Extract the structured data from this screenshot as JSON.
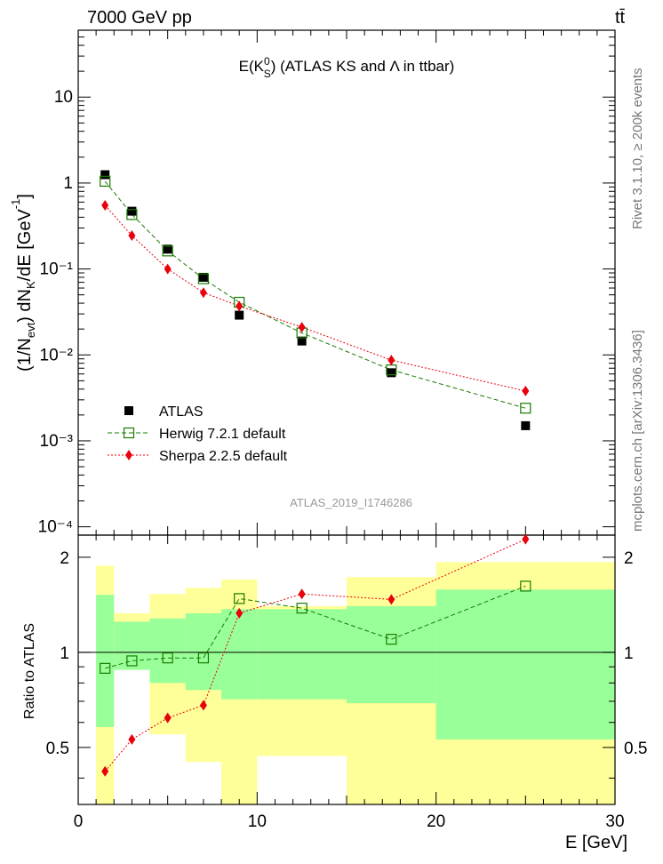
{
  "header": {
    "left": "7000 GeV pp",
    "right": "tt̄"
  },
  "side_text": {
    "upper": "Rivet 3.1.10, ≥ 200k events",
    "lower": "mcplots.cern.ch [arXiv:1306.3436]"
  },
  "chart_data": [
    {
      "type": "scatter",
      "title": "E(K_S^0) (ATLAS KS and Λ in ttbar)",
      "watermark": "ATLAS_2019_I1746286",
      "xlabel": "E [GeV]",
      "ylabel": "(1/N_evt) dN_K/dE [GeV^-1]",
      "xlim": [
        0,
        30
      ],
      "ylim": [
        8e-05,
        60
      ],
      "yscale": "log",
      "yticks": [
        "10⁻⁴",
        "10⁻³",
        "10⁻²",
        "10⁻¹",
        "1",
        "10"
      ],
      "legend_position": "bottom-left",
      "x": [
        1.5,
        3.0,
        5.0,
        7.0,
        9.0,
        12.5,
        17.5,
        25.0
      ],
      "bins": [
        [
          1,
          2
        ],
        [
          2,
          4
        ],
        [
          4,
          6
        ],
        [
          6,
          8
        ],
        [
          8,
          10
        ],
        [
          10,
          15
        ],
        [
          15,
          20
        ],
        [
          20,
          30
        ]
      ],
      "series": [
        {
          "name": "ATLAS",
          "color": "#000000",
          "marker": "square-filled",
          "values": [
            1.25,
            0.47,
            0.17,
            0.08,
            0.029,
            0.0145,
            0.0062,
            0.0015
          ]
        },
        {
          "name": "Herwig 7.2.1 default",
          "color": "#1a7a00",
          "marker": "square-open",
          "line": "dashed",
          "values": [
            1.05,
            0.43,
            0.162,
            0.077,
            0.041,
            0.018,
            0.0067,
            0.0024
          ]
        },
        {
          "name": "Sherpa 2.2.5 default",
          "color": "#e8000b",
          "marker": "diamond",
          "line": "dotted",
          "values": [
            0.55,
            0.245,
            0.1,
            0.053,
            0.037,
            0.021,
            0.0087,
            0.0038
          ]
        }
      ]
    },
    {
      "type": "scatter",
      "ylabel": "Ratio to ATLAS",
      "xlabel": "E [GeV]",
      "xlim": [
        0,
        30
      ],
      "ylim": [
        0.33,
        2.35
      ],
      "yticks": [
        "0.5",
        "1",
        "2"
      ],
      "xticks": [
        "0",
        "10",
        "20",
        "30"
      ],
      "x": [
        1.5,
        3.0,
        5.0,
        7.0,
        9.0,
        12.5,
        17.5,
        25.0
      ],
      "bands": {
        "bins": [
          [
            1,
            2
          ],
          [
            2,
            4
          ],
          [
            4,
            6
          ],
          [
            6,
            8
          ],
          [
            8,
            10
          ],
          [
            10,
            15
          ],
          [
            15,
            20
          ],
          [
            20,
            30
          ]
        ],
        "yellow": [
          [
            0.33,
            1.88
          ],
          [
            0.93,
            1.33
          ],
          [
            0.55,
            1.53
          ],
          [
            0.45,
            1.6
          ],
          [
            0.33,
            1.7
          ],
          [
            0.47,
            1.4
          ],
          [
            0.33,
            1.73
          ],
          [
            0.33,
            1.93
          ]
        ],
        "green": [
          [
            0.58,
            1.52
          ],
          [
            0.88,
            1.25
          ],
          [
            0.8,
            1.28
          ],
          [
            0.76,
            1.33
          ],
          [
            0.71,
            1.37
          ],
          [
            0.71,
            1.37
          ],
          [
            0.69,
            1.4
          ],
          [
            0.53,
            1.58
          ]
        ],
        "yellow_color": "#ffff99",
        "green_color": "#99ff99"
      },
      "series": [
        {
          "name": "Herwig 7.2.1 default",
          "color": "#1a7a00",
          "values": [
            0.89,
            0.94,
            0.96,
            0.96,
            1.48,
            1.38,
            1.1,
            1.62
          ]
        },
        {
          "name": "Sherpa 2.2.5 default",
          "color": "#e8000b",
          "values": [
            0.42,
            0.53,
            0.62,
            0.68,
            1.33,
            1.53,
            1.47,
            2.28
          ]
        }
      ]
    }
  ]
}
